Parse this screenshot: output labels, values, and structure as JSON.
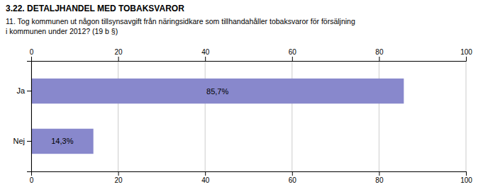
{
  "chart_data": {
    "type": "bar",
    "title": "3.22. DETALJHANDEL MED TOBAKSVAROR",
    "subtitle": "11. Tog kommunen ut någon tillsynsavgift från näringsidkare som tillhandahåller tobaksvaror för försäljning\ni kommunen under 2012? (19 b §)",
    "categories": [
      "Ja",
      "Nej"
    ],
    "values": [
      85.7,
      14.3
    ],
    "value_labels": [
      "85,7%",
      "14,3%"
    ],
    "data_labels": true,
    "color": "#8888cc",
    "orientation": "horizontal",
    "xlim": [
      0,
      100
    ],
    "xticks": [
      0,
      20,
      40,
      60,
      80,
      100
    ],
    "grid": true
  }
}
